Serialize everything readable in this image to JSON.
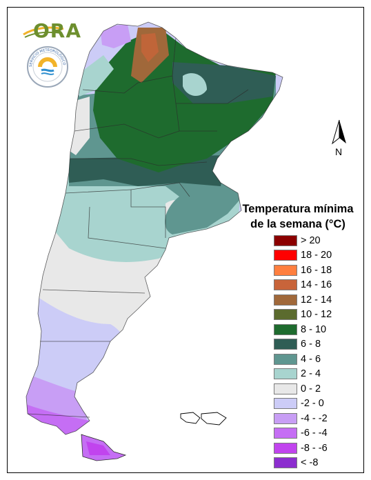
{
  "logo": {
    "text": "ORA",
    "seal_text": "SERVICIO METEOROLÓGICO NACIONAL · ARGENTINA"
  },
  "north_arrow": {
    "label": "N"
  },
  "legend": {
    "title_line1": "Temperatura mínima",
    "title_line2": "de la semana (°C)",
    "items": [
      {
        "label": "> 20",
        "color": "#8b0000"
      },
      {
        "label": "18 - 20",
        "color": "#ff0000"
      },
      {
        "label": "16 - 18",
        "color": "#ff7f3f"
      },
      {
        "label": "14 - 16",
        "color": "#c8643a"
      },
      {
        "label": "12 - 14",
        "color": "#a0683a"
      },
      {
        "label": "10 - 12",
        "color": "#5b6b2e"
      },
      {
        "label": "8 - 10",
        "color": "#1e6b2e"
      },
      {
        "label": "6 - 8",
        "color": "#2f5d55"
      },
      {
        "label": "4 - 6",
        "color": "#5f9690"
      },
      {
        "label": "2 - 4",
        "color": "#a8d4cf"
      },
      {
        "label": "0 - 2",
        "color": "#e8e8e8"
      },
      {
        "label": "-2 - 0",
        "color": "#ccccf7"
      },
      {
        "label": "-4 - -2",
        "color": "#c89ef5"
      },
      {
        "label": "-6 - -4",
        "color": "#c56ef4"
      },
      {
        "label": "-8 - -6",
        "color": "#c144ee"
      },
      {
        "label": "< -8",
        "color": "#8c2ecf"
      }
    ]
  }
}
